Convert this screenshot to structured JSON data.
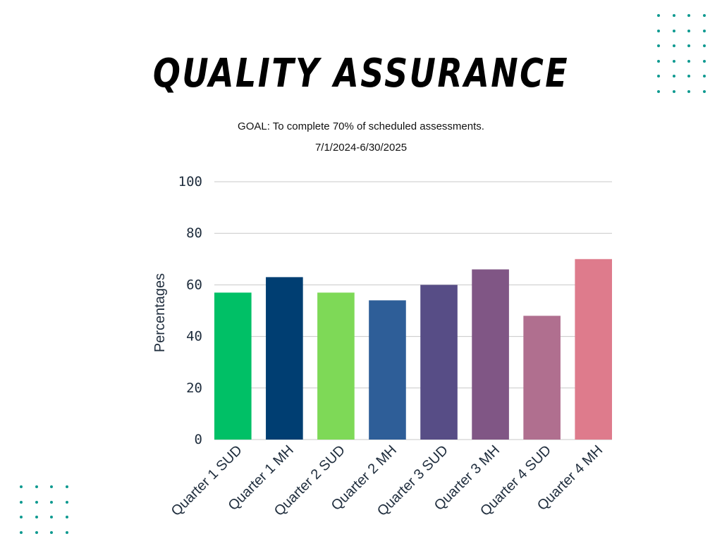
{
  "page": {
    "title": "QUALITY ASSURANCE",
    "goal": "GOAL: To complete 70% of scheduled assessments.",
    "period": "7/1/2024-6/30/2025"
  },
  "colors": {
    "dot_accent": "#0e9a90",
    "grid": "#c8c8c8",
    "tick_text": "#1f2d3d"
  },
  "chart_data": {
    "type": "bar",
    "title": "",
    "xlabel": "",
    "ylabel": "Percentages",
    "ylim": [
      0,
      100
    ],
    "yticks": [
      "0",
      "20",
      "40",
      "60",
      "80",
      "100"
    ],
    "ytick_values": [
      0,
      20,
      40,
      60,
      80,
      100
    ],
    "grid": true,
    "categories": [
      "Quarter 1 SUD",
      "Quarter 1 MH",
      "Quarter 2 SUD",
      "Quarter 2 MH",
      "Quarter 3 SUD",
      "Quarter 3 MH",
      "Quarter 4 SUD",
      "Quarter 4 MH"
    ],
    "values": [
      57,
      63,
      57,
      54,
      60,
      66,
      48,
      70
    ],
    "bar_colors": [
      "#00c066",
      "#003e72",
      "#7ed957",
      "#2e5e98",
      "#574d86",
      "#805685",
      "#b06f8f",
      "#de7b8c"
    ]
  }
}
